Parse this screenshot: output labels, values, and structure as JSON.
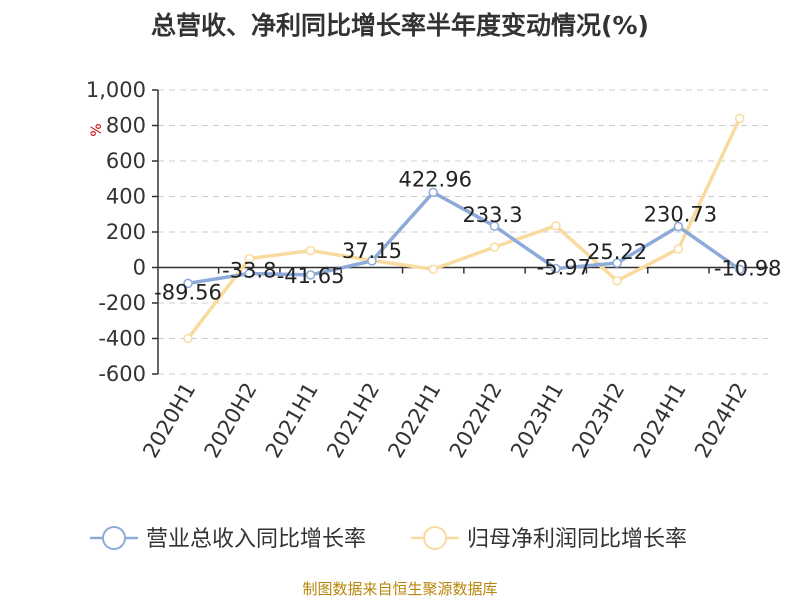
{
  "title": "总营收、净利同比增长率半年度变动情况(%)",
  "source": "制图数据来自恒生聚源数据库",
  "colors": {
    "series1": "#8eaad8",
    "series2": "#f9dba0",
    "grid": "#cccccc",
    "axis": "#333333",
    "source": "#b8860b"
  },
  "chart_data": {
    "type": "line",
    "title": "总营收、净利同比增长率半年度变动情况(%)",
    "ylabel": "%",
    "xlabel": "",
    "ylim": [
      -600,
      1000
    ],
    "yticks": [
      -600,
      -400,
      -200,
      0,
      200,
      400,
      600,
      800,
      1000
    ],
    "ytick_labels": [
      "-600",
      "-400",
      "-200",
      "0",
      "200",
      "400",
      "600",
      "800",
      "1,000"
    ],
    "grid": true,
    "legend_position": "bottom",
    "categories": [
      "2020H1",
      "2020H2",
      "2021H1",
      "2021H2",
      "2022H1",
      "2022H2",
      "2023H1",
      "2023H2",
      "2024H1",
      "2024H2"
    ],
    "series": [
      {
        "name": "营业总收入同比增长率",
        "color": "#8eaad8",
        "values": [
          -89.56,
          -33.8,
          -41.65,
          37.15,
          422.96,
          233.3,
          -5.97,
          25.22,
          230.73,
          -10.98
        ],
        "labels": [
          "-89.56",
          "-33.8",
          "-41.65",
          "37.15",
          "422.96",
          "233.3",
          "-5.97",
          "25.22",
          "230.73",
          "-10.98"
        ]
      },
      {
        "name": "归母净利润同比增长率",
        "color": "#f9dba0",
        "values": [
          -400,
          50,
          95,
          40,
          -10,
          115,
          235,
          -75,
          105,
          840
        ]
      }
    ]
  }
}
